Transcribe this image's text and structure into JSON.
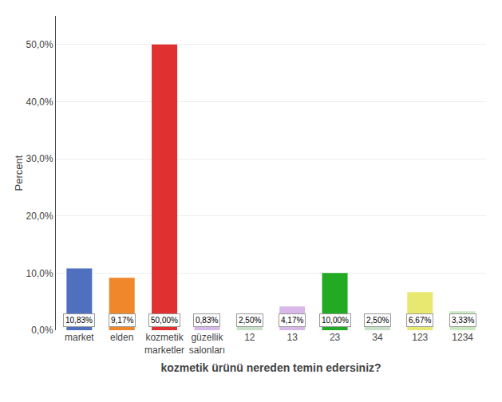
{
  "chart_data": {
    "type": "bar",
    "categories": [
      "market",
      "elden",
      "kozmetik\nmarketler",
      "güzellik\nsalonları",
      "12",
      "13",
      "23",
      "34",
      "123",
      "1234"
    ],
    "values": [
      10.83,
      9.17,
      50.0,
      0.83,
      2.5,
      4.17,
      10.0,
      2.5,
      6.67,
      3.33
    ],
    "value_labels": [
      "10,83%",
      "9,17%",
      "50,00%",
      "0,83%",
      "2,50%",
      "4,17%",
      "10,00%",
      "2,50%",
      "6,67%",
      "3,33%"
    ],
    "data_labels": true,
    "colors": [
      "#4f6fbf",
      "#f0872a",
      "#e03030",
      "#d8b8e8",
      "#c8e0c8",
      "#d8b8e8",
      "#22aa22",
      "#c8e0c8",
      "#e8e870",
      "#c8e8c0"
    ],
    "xlabel": "kozmetik ürünü nereden temin edersiniz?",
    "ylabel": "Percent",
    "ylim": [
      0,
      55
    ],
    "yticks": [
      {
        "value": 0.0,
        "label": "0,0%"
      },
      {
        "value": 10.0,
        "label": "10,0%"
      },
      {
        "value": 20.0,
        "label": "20,0%"
      },
      {
        "value": 30.0,
        "label": "30,0%"
      },
      {
        "value": 40.0,
        "label": "40,0%"
      },
      {
        "value": 50.0,
        "label": "50,0%"
      }
    ],
    "grid": true
  }
}
